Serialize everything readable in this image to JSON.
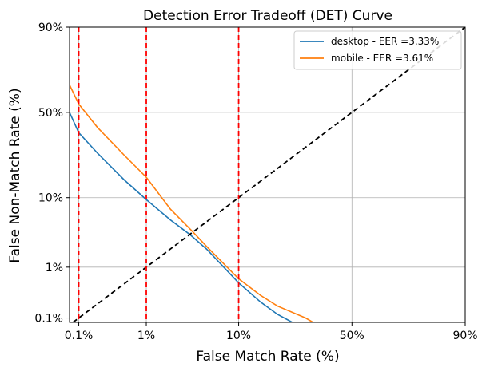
{
  "chart_data": {
    "type": "line",
    "title": "Detection Error Tradeoff (DET) Curve",
    "xlabel": "False Match Rate (%)",
    "ylabel": "False Non-Match Rate (%)",
    "x_scale": "probit",
    "y_scale": "probit",
    "x_ticks": [
      "0.1%",
      "1%",
      "10%",
      "50%",
      "90%"
    ],
    "y_ticks": [
      "90%",
      "50%",
      "10%",
      "1%",
      "0.1%"
    ],
    "x_tick_values": [
      0.1,
      1,
      10,
      50,
      90
    ],
    "y_tick_values": [
      90,
      50,
      10,
      1,
      0.1
    ],
    "xlim": [
      0.07,
      90
    ],
    "ylim": [
      0.08,
      90
    ],
    "grid": true,
    "legend_position": "top-right",
    "series": [
      {
        "name": "desktop - EER =3.33%",
        "color": "#1f77b4",
        "x": [
          0.07,
          0.1,
          0.2,
          0.5,
          1,
          2,
          3.33,
          5,
          10,
          15,
          20,
          25
        ],
        "y": [
          50,
          38,
          27,
          15.5,
          9.5,
          5.3,
          3.33,
          2.0,
          0.52,
          0.22,
          0.12,
          0.08
        ]
      },
      {
        "name": "mobile - EER =3.61%",
        "color": "#ff7f0e",
        "x": [
          0.07,
          0.1,
          0.2,
          0.5,
          1,
          2,
          3.61,
          5,
          10,
          15,
          20,
          30,
          33
        ],
        "y": [
          66,
          55,
          41,
          26,
          16.5,
          7.3,
          3.61,
          2.2,
          0.62,
          0.3,
          0.18,
          0.1,
          0.08
        ]
      }
    ],
    "reference_lines": [
      {
        "type": "diagonal",
        "style": "dashed",
        "color": "#000000"
      },
      {
        "type": "vertical",
        "x": 0.1,
        "style": "dashed",
        "color": "#ff0000"
      },
      {
        "type": "vertical",
        "x": 1,
        "style": "dashed",
        "color": "#ff0000"
      },
      {
        "type": "vertical",
        "x": 10,
        "style": "dashed",
        "color": "#ff0000"
      }
    ]
  }
}
